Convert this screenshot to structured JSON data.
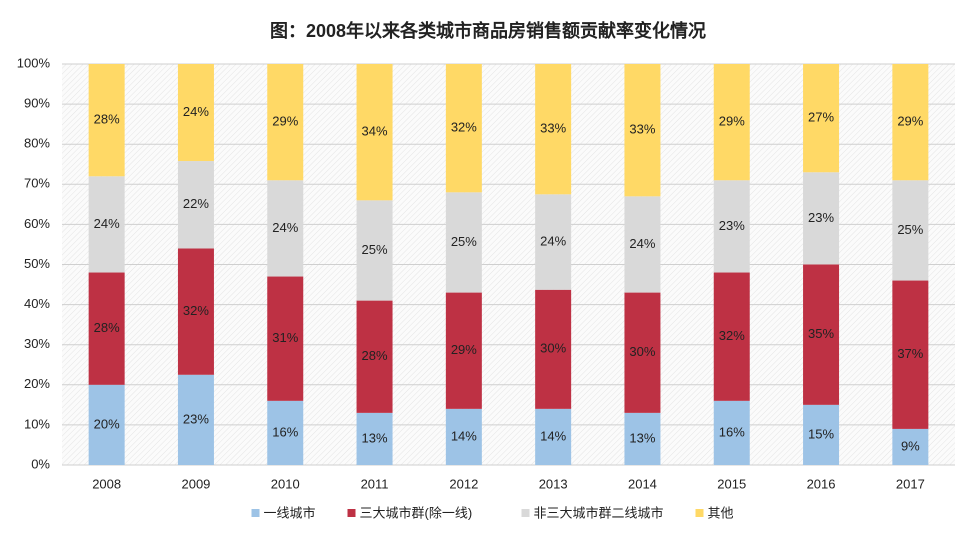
{
  "chart_data": {
    "type": "stacked_bar",
    "title": "图：2008年以来各类城市商品房销售额贡献率变化情况",
    "categories": [
      "2008",
      "2009",
      "2010",
      "2011",
      "2012",
      "2013",
      "2014",
      "2015",
      "2016",
      "2017"
    ],
    "series": [
      {
        "name": "一线城市",
        "color": "#9dc3e6",
        "values": [
          20,
          22.5,
          16,
          13,
          14,
          14,
          13,
          16,
          15,
          9
        ],
        "value_labels": [
          "20%",
          "23%",
          "16%",
          "13%",
          "14%",
          "14%",
          "13%",
          "16%",
          "15%",
          "9%"
        ]
      },
      {
        "name": "三大城市群(除一线)",
        "color": "#be3144",
        "values": [
          28,
          31.5,
          31,
          28,
          29,
          29.7,
          30,
          32,
          35,
          37
        ],
        "value_labels": [
          "28%",
          "32%",
          "31%",
          "28%",
          "29%",
          "30%",
          "30%",
          "32%",
          "35%",
          "37%"
        ]
      },
      {
        "name": "非三大城市群二线城市",
        "color": "#d9d9d9",
        "values": [
          24,
          21.8,
          24,
          25,
          25,
          23.8,
          24,
          23,
          23,
          25
        ],
        "value_labels": [
          "24%",
          "22%",
          "24%",
          "25%",
          "25%",
          "24%",
          "24%",
          "23%",
          "23%",
          "25%"
        ]
      },
      {
        "name": "其他",
        "color": "#ffd966",
        "values": [
          28,
          24.2,
          29,
          34,
          32,
          32.5,
          33,
          29,
          27,
          29
        ],
        "value_labels": [
          "28%",
          "24%",
          "29%",
          "34%",
          "32%",
          "33%",
          "33%",
          "29%",
          "27%",
          "29%"
        ]
      }
    ],
    "ylim": [
      0,
      100
    ],
    "yticks": [
      {
        "value": 0,
        "label": "0%"
      },
      {
        "value": 10,
        "label": "10%"
      },
      {
        "value": 20,
        "label": "20%"
      },
      {
        "value": 30,
        "label": "30%"
      },
      {
        "value": 40,
        "label": "40%"
      },
      {
        "value": 50,
        "label": "50%"
      },
      {
        "value": 60,
        "label": "60%"
      },
      {
        "value": 70,
        "label": "70%"
      },
      {
        "value": 80,
        "label": "80%"
      },
      {
        "value": 90,
        "label": "90%"
      },
      {
        "value": 100,
        "label": "100%"
      }
    ],
    "grid": true,
    "legend": "bottom"
  }
}
